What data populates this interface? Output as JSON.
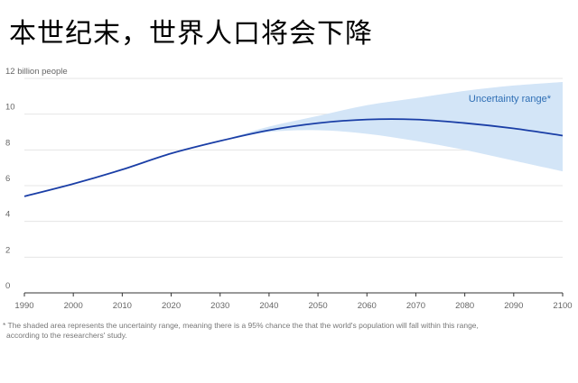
{
  "headline": "本世纪末，世界人口将会下降",
  "footnote": {
    "line1": "* The shaded area represents the uncertainty range, meaning there is a 95% chance the that the world's population will fall within this range,",
    "line2": "according to the researchers' study."
  },
  "chart_data": {
    "type": "line",
    "title": "",
    "xlabel": "",
    "ylabel": "",
    "y_axis_unit_label": "12 billion people",
    "xlim": [
      1990,
      2100
    ],
    "ylim": [
      0,
      12
    ],
    "x_ticks": [
      1990,
      2000,
      2010,
      2020,
      2030,
      2040,
      2050,
      2060,
      2070,
      2080,
      2090,
      2100
    ],
    "y_ticks": [
      {
        "value": 0,
        "label": "0"
      },
      {
        "value": 2,
        "label": "2"
      },
      {
        "value": 4,
        "label": "4"
      },
      {
        "value": 6,
        "label": "6"
      },
      {
        "value": 8,
        "label": "8"
      },
      {
        "value": 10,
        "label": "10"
      },
      {
        "value": 12,
        "label": "12 billion people"
      }
    ],
    "grid": "horizontal",
    "series": [
      {
        "name": "",
        "color": "#1a3ea6",
        "x": [
          1990,
          2000,
          2010,
          2020,
          2030,
          2040,
          2050,
          2060,
          2070,
          2080,
          2090,
          2100
        ],
        "y": [
          5.4,
          6.1,
          6.9,
          7.8,
          8.5,
          9.1,
          9.5,
          9.7,
          9.7,
          9.5,
          9.2,
          8.8
        ]
      }
    ],
    "uncertainty_band": {
      "label": "Uncertainty range*",
      "color": "#d3e5f7",
      "x": [
        2030,
        2040,
        2050,
        2060,
        2070,
        2080,
        2090,
        2100
      ],
      "upper": [
        8.5,
        9.3,
        9.9,
        10.5,
        10.9,
        11.3,
        11.6,
        11.8
      ],
      "lower": [
        8.5,
        9.0,
        9.1,
        8.9,
        8.5,
        8.0,
        7.4,
        6.8
      ]
    },
    "colors": {
      "line": "#1a3ea6",
      "band": "#d3e5f7",
      "band_label": "#2f6fb5",
      "grid": "#e4e4e4",
      "tick_label": "#666666"
    }
  }
}
